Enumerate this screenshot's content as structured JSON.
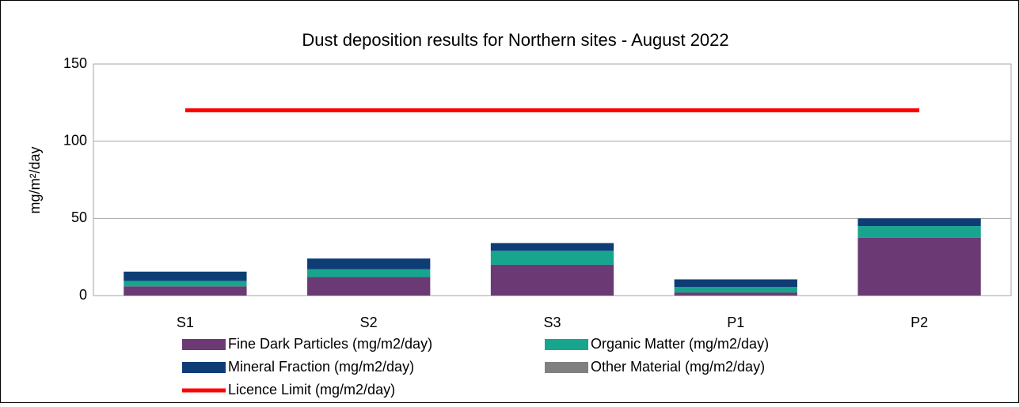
{
  "chart_data": {
    "type": "bar",
    "stacked": true,
    "title": "Dust deposition results for Northern sites - August 2022",
    "y_label": "mg/m²/day",
    "categories": [
      "S1",
      "S2",
      "S3",
      "P1",
      "P2"
    ],
    "series": [
      {
        "name": "Fine Dark Particles (mg/m2/day)",
        "color": "#6b3a74",
        "values": [
          6,
          12,
          20,
          2,
          37.4
        ]
      },
      {
        "name": "Organic Matter (mg/m2/day)",
        "color": "#17a58e",
        "values": [
          3.5,
          5,
          9,
          3.5,
          7.6
        ]
      },
      {
        "name": "Mineral Fraction (mg/m2/day)",
        "color": "#0e3d75",
        "values": [
          6,
          7,
          5,
          5,
          5
        ]
      },
      {
        "name": "Other Material (mg/m2/day)",
        "color": "#808080",
        "values": [
          0,
          0,
          0,
          0,
          0
        ]
      },
      {
        "name": "Licence Limit  (mg/m2/day)",
        "color": "#ff0000",
        "type": "line",
        "values": [
          120,
          120,
          120,
          120,
          120
        ]
      }
    ],
    "ylim": [
      0,
      150
    ],
    "yticks": [
      0,
      50,
      100,
      150
    ],
    "grid": true
  }
}
